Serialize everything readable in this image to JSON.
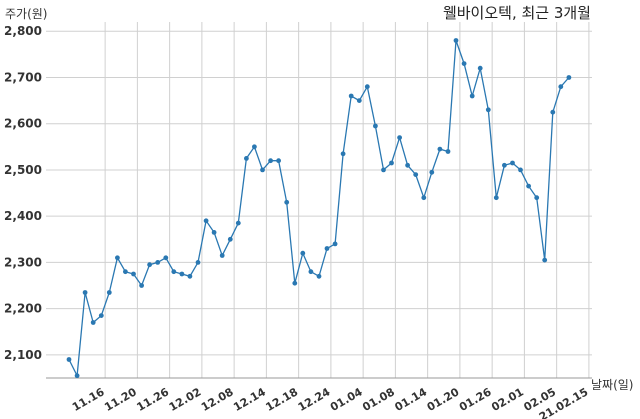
{
  "chart_data": {
    "type": "line",
    "title": "웰바이오텍, 최근 3개월",
    "xlabel": "날짜(일)",
    "ylabel": "주가(원)",
    "ylim": [
      2050,
      2820
    ],
    "yticks": [
      2100,
      2200,
      2300,
      2400,
      2500,
      2600,
      2700,
      2800
    ],
    "ytick_labels": [
      "2,100",
      "2,200",
      "2,300",
      "2,400",
      "2,500",
      "2,600",
      "2,700",
      "2,800"
    ],
    "xtick_labels": [
      "11.16",
      "11.20",
      "11.26",
      "12.02",
      "12.08",
      "12.14",
      "12.18",
      "12.24",
      "01.04",
      "01.08",
      "01.14",
      "01.20",
      "01.26",
      "02.01",
      "02.05",
      "21.02.15"
    ],
    "xtick_positions": [
      2,
      6,
      10,
      14,
      18,
      22,
      26,
      30,
      34,
      38,
      42,
      46,
      50,
      54,
      58,
      62
    ],
    "grid": true,
    "color": "#2a78b2",
    "series": [
      {
        "values": [
          2090,
          2055,
          2235,
          2170,
          2185,
          2235,
          2310,
          2280,
          2275,
          2250,
          2295,
          2300,
          2310,
          2280,
          2275,
          2270,
          2300,
          2390,
          2365,
          2315,
          2350,
          2385,
          2525,
          2550,
          2500,
          2520,
          2520,
          2430,
          2255,
          2320,
          2280,
          2270,
          2330,
          2340,
          2535,
          2660,
          2650,
          2680,
          2595,
          2500,
          2515,
          2570,
          2510,
          2490,
          2440,
          2495,
          2545,
          2540,
          2780,
          2730,
          2660,
          2720,
          2630,
          2440,
          2510,
          2515,
          2500,
          2465,
          2440,
          2305,
          2625,
          2680,
          2700
        ]
      }
    ]
  }
}
